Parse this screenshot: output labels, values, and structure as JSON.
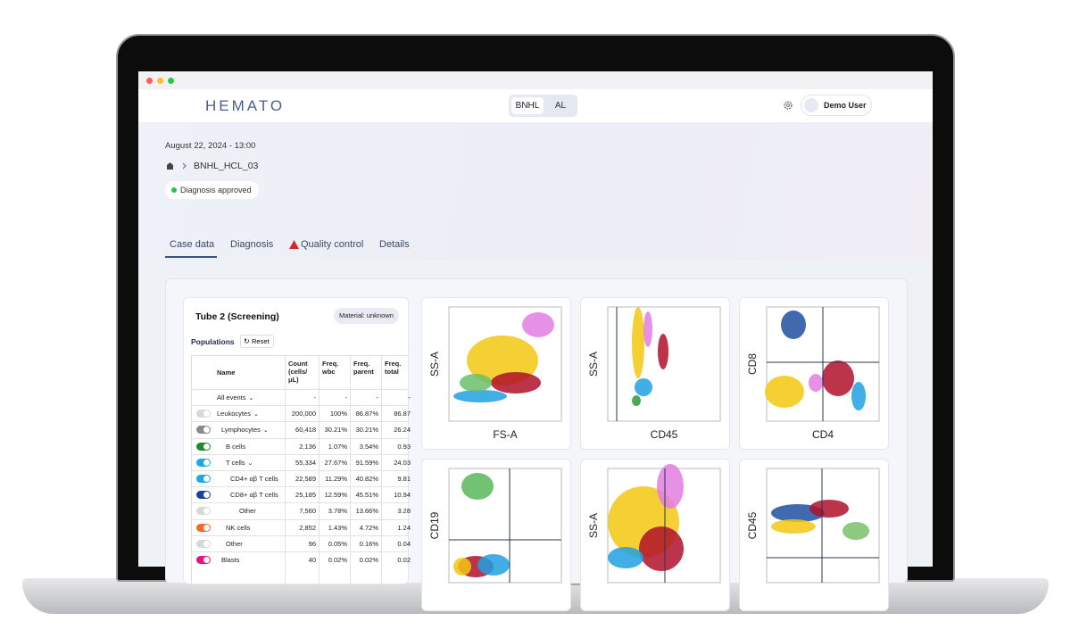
{
  "header": {
    "logo": "HEMATO",
    "modes": [
      "BNHL",
      "AL"
    ],
    "user": "Demo User"
  },
  "case": {
    "date": "August 22, 2024 - 13:00",
    "breadcrumb": "BNHL_HCL_03",
    "status": "Diagnosis approved"
  },
  "tabs": [
    "Case data",
    "Diagnosis",
    "Quality control",
    "Details"
  ],
  "panel": {
    "title": "Tube 2 (Screening)",
    "material": "Material: unknown",
    "populations": "Populations",
    "reset": "Reset"
  },
  "table": {
    "columns": [
      "Name",
      "Count (cells/μL)",
      "Freq. wbc",
      "Freq. parent",
      "Freq. total"
    ],
    "rows": [
      [
        "All events",
        "-",
        "-",
        "-",
        "-"
      ],
      [
        "Leukocytes",
        "200,000",
        "100%",
        "86.87%",
        "86.87"
      ],
      [
        "Lymphocytes",
        "60,418",
        "30.21%",
        "30.21%",
        "26.24"
      ],
      [
        "B cells",
        "2,136",
        "1.07%",
        "3.54%",
        "0.93"
      ],
      [
        "T cells",
        "55,334",
        "27.67%",
        "91.59%",
        "24.03"
      ],
      [
        "CD4+ αβ T cells",
        "22,589",
        "11.29%",
        "40.82%",
        "9.81"
      ],
      [
        "CD8+ αβ T cells",
        "25,185",
        "12.59%",
        "45.51%",
        "10.94"
      ],
      [
        "Other",
        "7,560",
        "3.78%",
        "13.66%",
        "3.28"
      ],
      [
        "NK cells",
        "2,852",
        "1.43%",
        "4.72%",
        "1.24"
      ],
      [
        "Other",
        "96",
        "0.05%",
        "0.16%",
        "0.04"
      ],
      [
        "Blasts",
        "40",
        "0.02%",
        "0.02%",
        "0.02"
      ]
    ]
  },
  "plots": [
    {
      "x_label": "FS-A",
      "y_label": "SS-A"
    },
    {
      "x_label": "CD45",
      "y_label": "SS-A"
    },
    {
      "x_label": "CD4",
      "y_label": "CD8"
    },
    {
      "y_label": "CD19"
    },
    {
      "y_label": "SS-A"
    },
    {
      "y_label": "CD45"
    }
  ]
}
